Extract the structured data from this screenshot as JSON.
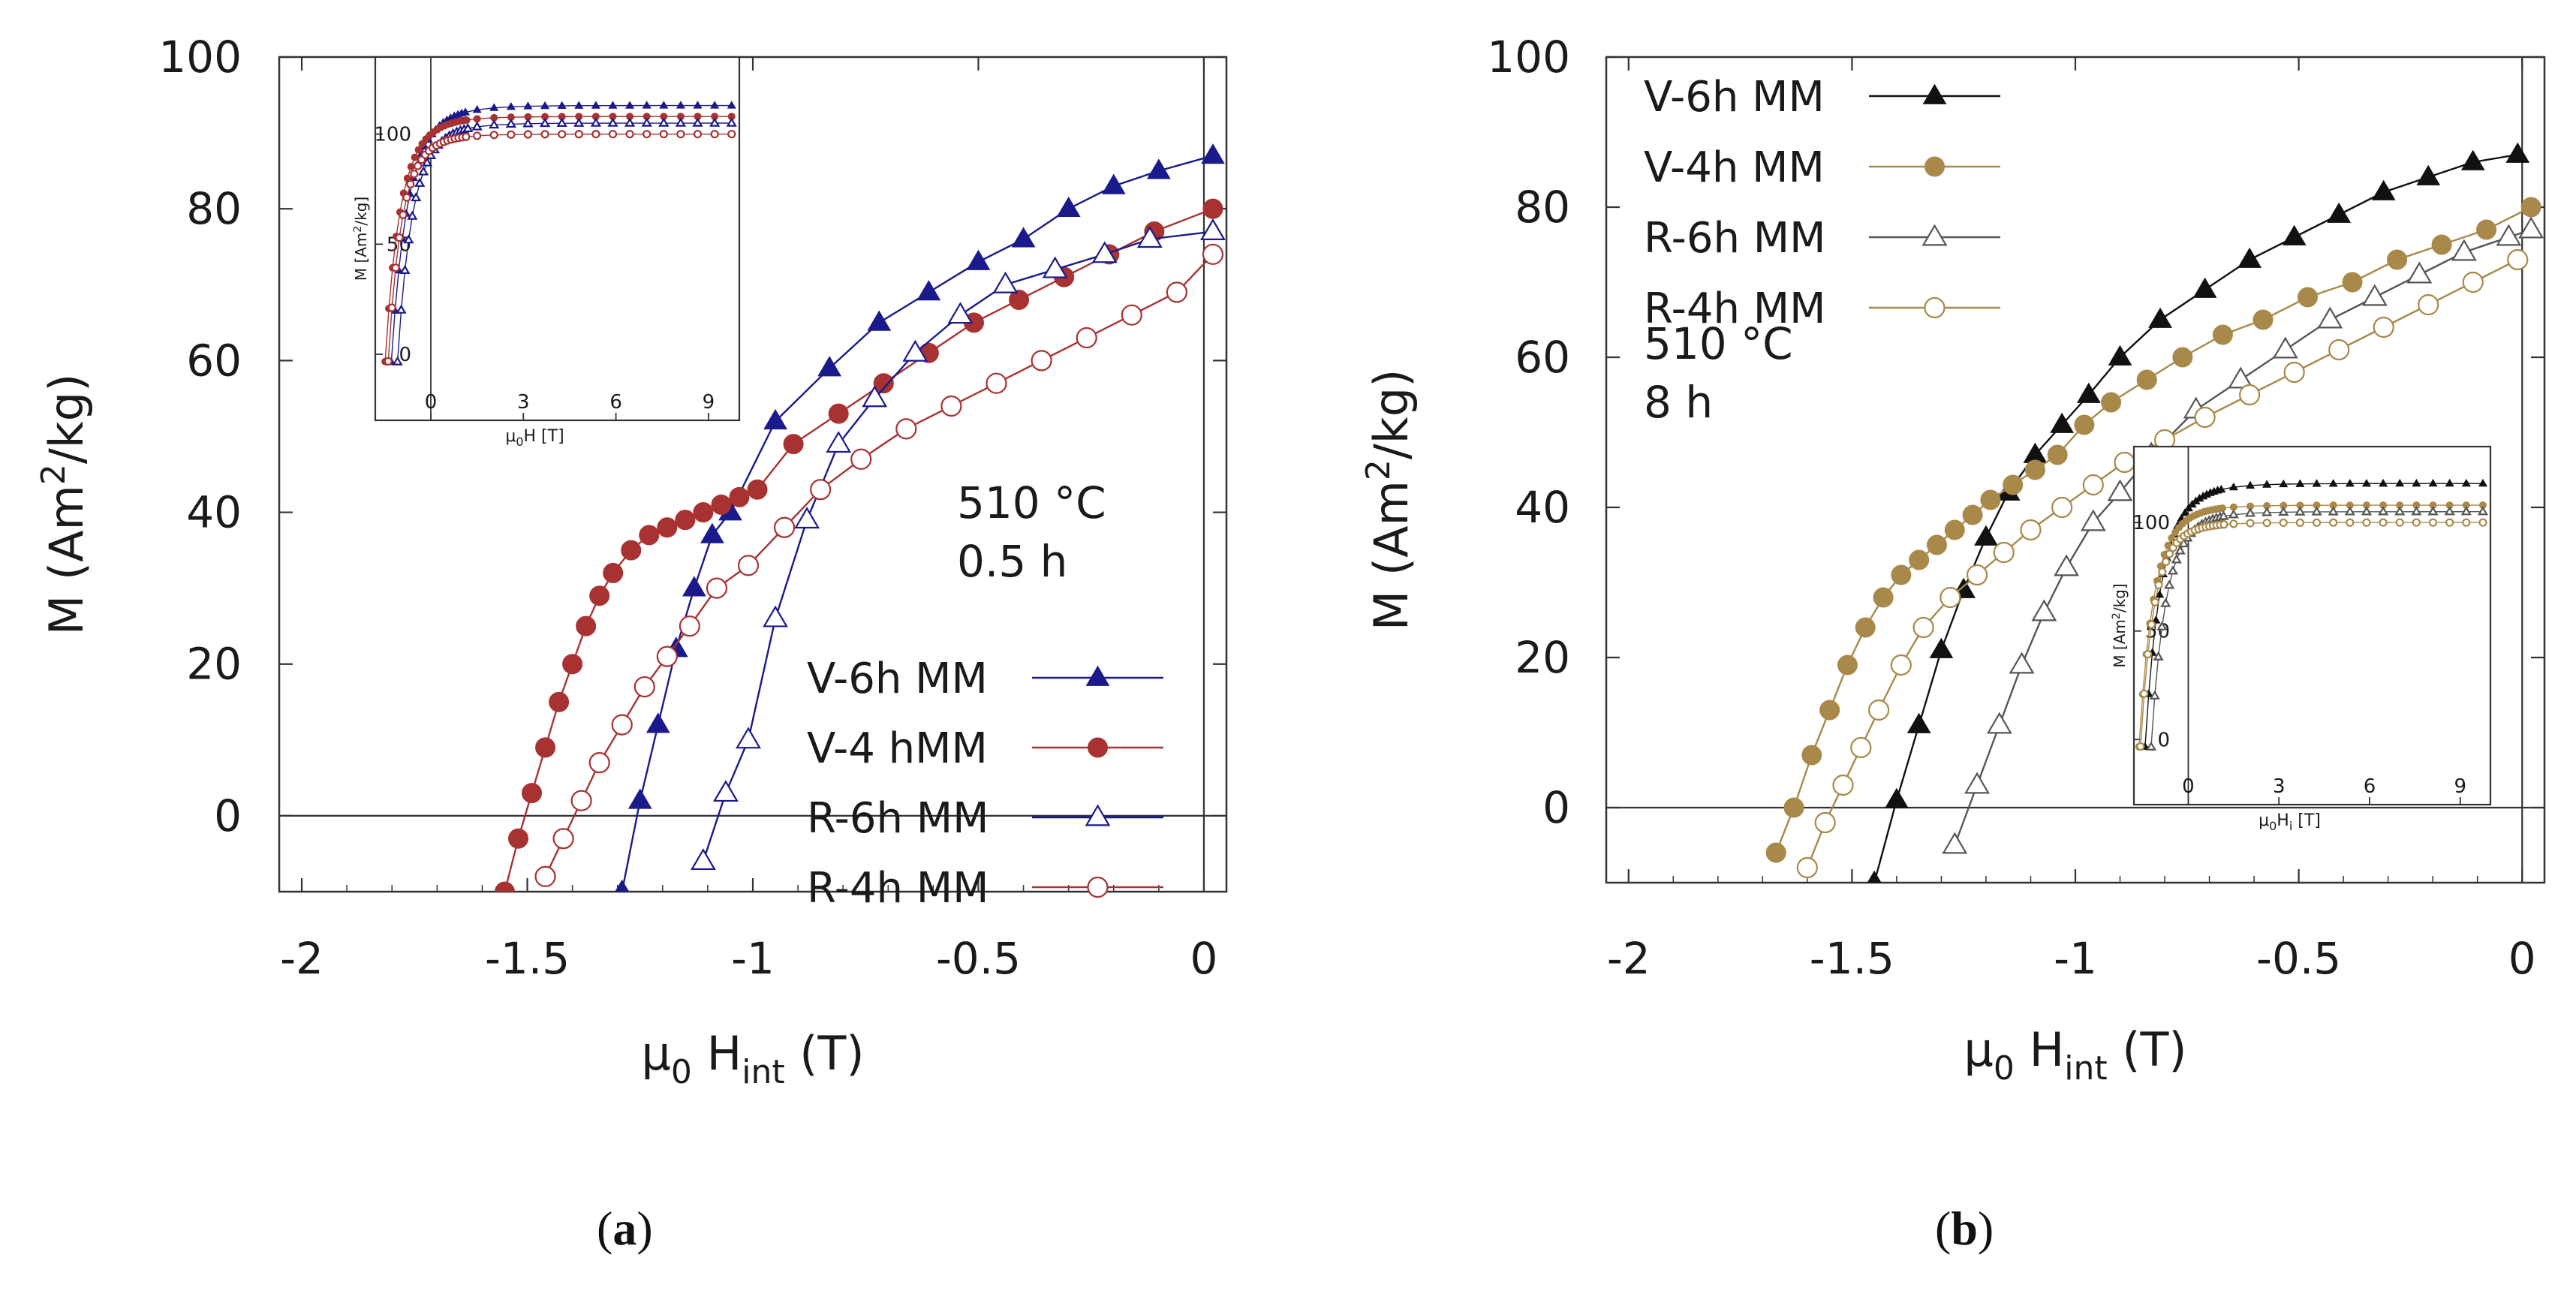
{
  "captions": [
    {
      "open": "(",
      "letter": "a",
      "close": ")"
    },
    {
      "open": "(",
      "letter": "b",
      "close": ")"
    }
  ],
  "chart_data": [
    {
      "panel": "a",
      "type": "line",
      "xlabel": "μ0 Hint (T)",
      "xlabel_parts": {
        "main": "μ",
        "sub1": "0",
        "mid": " H",
        "sub2": "int",
        "tail": " (T)"
      },
      "ylabel": "M (Am2/kg)",
      "ylabel_parts": {
        "main": "M (Am",
        "sup": "2",
        "tail": "/kg)"
      },
      "xlim": [
        -2.05,
        0.05
      ],
      "ylim": [
        -10,
        100
      ],
      "xticks": [
        -2,
        -1.5,
        -1,
        -0.5,
        0
      ],
      "xtick_labels": [
        "-2",
        "-1.5",
        "-1",
        "-0.5",
        "0"
      ],
      "yticks": [
        0,
        20,
        40,
        60,
        80,
        100
      ],
      "ytick_labels": [
        "0",
        "20",
        "40",
        "60",
        "80",
        "100"
      ],
      "vline_x": 0,
      "hline_y": 0,
      "annotation": [
        "510 °C",
        "0.5 h"
      ],
      "legend_position": "lower-right",
      "series": [
        {
          "name": "V-6h MM",
          "color": "#1a1a8c",
          "marker": "triangle",
          "filled": true,
          "x": [
            -1.29,
            -1.25,
            -1.21,
            -1.17,
            -1.13,
            -1.09,
            -1.05,
            -0.95,
            -0.83,
            -0.72,
            -0.61,
            -0.5,
            -0.4,
            -0.3,
            -0.2,
            -0.1,
            0.02
          ],
          "y": [
            -10,
            2,
            12,
            22,
            30,
            37,
            40,
            52,
            59,
            65,
            69,
            73,
            76,
            80,
            83,
            85,
            87
          ]
        },
        {
          "name": "V-4 hMM",
          "color": "#a83232",
          "marker": "circle",
          "filled": true,
          "x": [
            -1.55,
            -1.52,
            -1.49,
            -1.46,
            -1.43,
            -1.4,
            -1.37,
            -1.34,
            -1.31,
            -1.27,
            -1.23,
            -1.19,
            -1.15,
            -1.11,
            -1.07,
            -1.03,
            -0.99,
            -0.91,
            -0.81,
            -0.71,
            -0.61,
            -0.51,
            -0.41,
            -0.31,
            -0.21,
            -0.11,
            0.02
          ],
          "y": [
            -10,
            -3,
            3,
            9,
            15,
            20,
            25,
            29,
            32,
            35,
            37,
            38,
            39,
            40,
            41,
            42,
            43,
            49,
            53,
            57,
            61,
            65,
            68,
            71,
            74,
            77,
            80
          ]
        },
        {
          "name": "R-6h MM",
          "color": "#1a1a8c",
          "marker": "triangle",
          "filled": false,
          "x": [
            -1.11,
            -1.06,
            -1.01,
            -0.95,
            -0.88,
            -0.81,
            -0.73,
            -0.64,
            -0.54,
            -0.44,
            -0.33,
            -0.22,
            -0.12,
            0.02
          ],
          "y": [
            -6,
            3,
            10,
            26,
            39,
            49,
            55,
            61,
            66,
            70,
            72,
            74,
            76,
            77
          ]
        },
        {
          "name": "R-4h MM",
          "color": "#a83232",
          "marker": "circle",
          "filled": false,
          "x": [
            -1.46,
            -1.42,
            -1.38,
            -1.34,
            -1.29,
            -1.24,
            -1.19,
            -1.14,
            -1.08,
            -1.01,
            -0.93,
            -0.85,
            -0.76,
            -0.66,
            -0.56,
            -0.46,
            -0.36,
            -0.26,
            -0.16,
            -0.06,
            0.02
          ],
          "y": [
            -8,
            -3,
            2,
            7,
            12,
            17,
            21,
            25,
            30,
            33,
            38,
            43,
            47,
            51,
            54,
            57,
            60,
            63,
            66,
            69,
            74
          ]
        }
      ],
      "inset": {
        "position": "top-left",
        "xlabel": "μ0H [T]",
        "xlabel_parts": {
          "main": "μ",
          "sub": "0",
          "tail": "H [T]"
        },
        "ylabel": "M [Am2/kg]",
        "ylabel_parts": {
          "main": "M [Am",
          "sup": "2",
          "tail": "/kg]"
        },
        "xlim": [
          -1.8,
          10
        ],
        "ylim": [
          -30,
          135
        ],
        "xticks": [
          0,
          3,
          6,
          9
        ],
        "xtick_labels": [
          "0",
          "3",
          "6",
          "9"
        ],
        "yticks": [
          0,
          50,
          100
        ],
        "ytick_labels": [
          "0",
          "50",
          "100"
        ],
        "curves": [
          {
            "color": "#1a1a8c",
            "marker": "triangle",
            "filled": true,
            "m_sat": 113,
            "h_c": -1.3,
            "k": 0.55
          },
          {
            "color": "#a83232",
            "marker": "circle",
            "filled": true,
            "m_sat": 108,
            "h_c": -1.5,
            "k": 0.5
          },
          {
            "color": "#1a1a8c",
            "marker": "triangle",
            "filled": false,
            "m_sat": 105,
            "h_c": -1.1,
            "k": 0.5
          },
          {
            "color": "#a83232",
            "marker": "circle",
            "filled": false,
            "m_sat": 100,
            "h_c": -1.4,
            "k": 0.45
          }
        ]
      }
    },
    {
      "panel": "b",
      "type": "line",
      "xlabel": "μ0 Hint (T)",
      "xlabel_parts": {
        "main": "μ",
        "sub1": "0",
        "mid": " H",
        "sub2": "int",
        "tail": " (T)"
      },
      "ylabel": "M (Am2/kg)",
      "ylabel_parts": {
        "main": "M (Am",
        "sup": "2",
        "tail": "/kg)"
      },
      "xlim": [
        -2.05,
        0.05
      ],
      "ylim": [
        -10,
        100
      ],
      "xticks": [
        -2,
        -1.5,
        -1,
        -0.5,
        0
      ],
      "xtick_labels": [
        "-2",
        "-1.5",
        "-1",
        "-0.5",
        "0"
      ],
      "yticks": [
        0,
        20,
        40,
        60,
        80,
        100
      ],
      "ytick_labels": [
        "0",
        "20",
        "40",
        "60",
        "80",
        "100"
      ],
      "vline_x": 0,
      "hline_y": 0,
      "annotation": [
        "510 °C",
        "8 h"
      ],
      "legend_position": "top-left",
      "series": [
        {
          "name": "V-6h MM",
          "color": "#111111",
          "marker": "triangle",
          "filled": true,
          "x": [
            -1.45,
            -1.4,
            -1.35,
            -1.3,
            -1.25,
            -1.2,
            -1.15,
            -1.09,
            -1.03,
            -0.97,
            -0.9,
            -0.81,
            -0.71,
            -0.61,
            -0.51,
            -0.41,
            -0.31,
            -0.21,
            -0.11,
            -0.01
          ],
          "y": [
            -10,
            1,
            11,
            21,
            29,
            36,
            42,
            47,
            51,
            55,
            60,
            65,
            69,
            73,
            76,
            79,
            82,
            84,
            86,
            87
          ]
        },
        {
          "name": "V-4h MM",
          "color": "#a8894a",
          "marker": "circle",
          "filled": true,
          "x": [
            -1.67,
            -1.63,
            -1.59,
            -1.55,
            -1.51,
            -1.47,
            -1.43,
            -1.39,
            -1.35,
            -1.31,
            -1.27,
            -1.23,
            -1.19,
            -1.14,
            -1.09,
            -1.04,
            -0.98,
            -0.92,
            -0.84,
            -0.76,
            -0.67,
            -0.58,
            -0.48,
            -0.38,
            -0.28,
            -0.18,
            -0.08,
            0.02
          ],
          "y": [
            -6,
            0,
            7,
            13,
            19,
            24,
            28,
            31,
            33,
            35,
            37,
            39,
            41,
            43,
            45,
            47,
            51,
            54,
            57,
            60,
            63,
            65,
            68,
            70,
            73,
            75,
            77,
            80
          ]
        },
        {
          "name": "R-6h MM",
          "color": "#555555",
          "marker": "triangle",
          "filled": false,
          "x": [
            -1.27,
            -1.22,
            -1.17,
            -1.12,
            -1.07,
            -1.02,
            -0.96,
            -0.9,
            -0.83,
            -0.73,
            -0.63,
            -0.53,
            -0.43,
            -0.33,
            -0.23,
            -0.13,
            -0.03,
            0.02
          ],
          "y": [
            -5,
            3,
            11,
            19,
            26,
            32,
            38,
            42,
            47,
            53,
            57,
            61,
            65,
            68,
            71,
            74,
            76,
            77
          ]
        },
        {
          "name": "R-4h MM",
          "color": "#a8894a",
          "marker": "circle",
          "filled": false,
          "x": [
            -1.6,
            -1.56,
            -1.52,
            -1.48,
            -1.44,
            -1.39,
            -1.34,
            -1.28,
            -1.22,
            -1.16,
            -1.1,
            -1.03,
            -0.96,
            -0.89,
            -0.8,
            -0.71,
            -0.61,
            -0.51,
            -0.41,
            -0.31,
            -0.21,
            -0.11,
            -0.01
          ],
          "y": [
            -8,
            -2,
            3,
            8,
            13,
            19,
            24,
            28,
            31,
            34,
            37,
            40,
            43,
            46,
            49,
            52,
            55,
            58,
            61,
            64,
            67,
            70,
            73
          ]
        }
      ],
      "inset": {
        "position": "bottom-right",
        "xlabel": "μ0Hi [T]",
        "xlabel_parts": {
          "main": "μ",
          "sub": "0",
          "tail": "H",
          "sub2": "i",
          "tail2": " [T]"
        },
        "ylabel": "M [Am2/kg]",
        "ylabel_parts": {
          "main": "M [Am",
          "sup": "2",
          "tail": "/kg]"
        },
        "xlim": [
          -1.8,
          10
        ],
        "ylim": [
          -30,
          135
        ],
        "xticks": [
          0,
          3,
          6,
          9
        ],
        "xtick_labels": [
          "0",
          "3",
          "6",
          "9"
        ],
        "yticks": [
          0,
          50,
          100
        ],
        "ytick_labels": [
          "0",
          "50",
          "100"
        ],
        "curves": [
          {
            "color": "#111111",
            "marker": "triangle",
            "filled": true,
            "m_sat": 118,
            "h_c": -1.45,
            "k": 0.55
          },
          {
            "color": "#a8894a",
            "marker": "circle",
            "filled": true,
            "m_sat": 108,
            "h_c": -1.65,
            "k": 0.5
          },
          {
            "color": "#555555",
            "marker": "triangle",
            "filled": false,
            "m_sat": 105,
            "h_c": -1.25,
            "k": 0.5
          },
          {
            "color": "#a8894a",
            "marker": "circle",
            "filled": false,
            "m_sat": 100,
            "h_c": -1.6,
            "k": 0.45
          }
        ]
      }
    }
  ]
}
